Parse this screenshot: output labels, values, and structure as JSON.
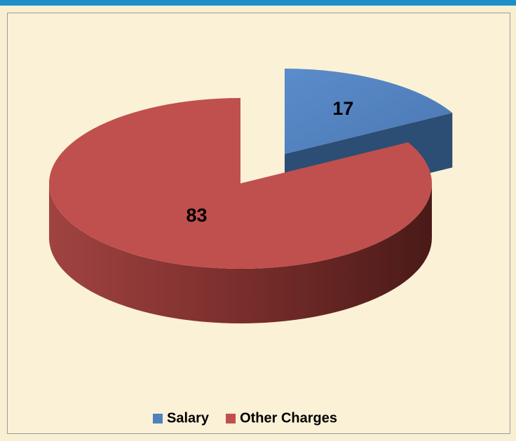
{
  "chart_data": {
    "type": "pie",
    "categories": [
      "Salary",
      "Other Charges"
    ],
    "values": [
      17,
      83
    ],
    "colors": [
      "#4f81bd",
      "#c0504d"
    ],
    "legend": "bottom"
  }
}
